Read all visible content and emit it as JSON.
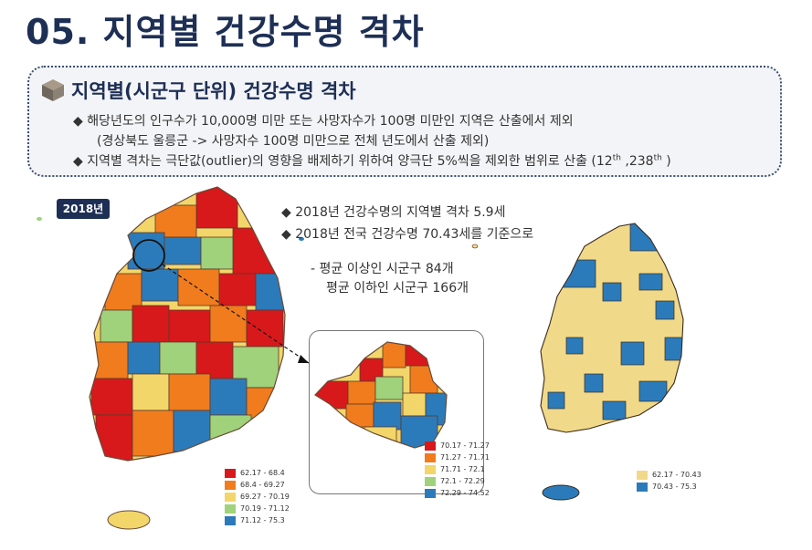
{
  "page": {
    "title": "05. 지역별 건강수명 격차"
  },
  "summary_box": {
    "heading": "지역별(시군구 단위) 건강수명 격차",
    "bullet1": "◆ 해당년도의 인구수가 10,000명 미만 또는 사망자수가 100명 미만인 지역은 산출에서 제외",
    "bullet1_sub": "(경상북도 울릉군 -> 사망자수 100명 미만으로 전체 년도에서 산출 제외)",
    "bullet3_pre": "◆ 지역별 격차는 극단값(outlier)의 영향을 배제하기 위하여 양극단 5%씩을 제외한 범위로 산출 (12",
    "bullet3_sup1": "th",
    "bullet3_mid": " ,238",
    "bullet3_sup2": "th",
    "bullet3_post": " )"
  },
  "year_badge": "2018년",
  "notes": {
    "line1": "◆ 2018년 건강수명의 지역별 격차 5.9세",
    "line2": "◆ 2018년 전국 건강수명 70.43세를 기준으로",
    "line3": "- 평균 이상인 시군구 84개",
    "line4": "평균 이하인 시군구 166개"
  },
  "colors": {
    "red": "#d7191c",
    "orange": "#f07c1e",
    "yellow": "#f2d66a",
    "light_green": "#9fd27a",
    "blue": "#2b7bba",
    "beige": "#f1d98a",
    "navy": "#1e2f55"
  },
  "legend_main": [
    {
      "label": "62.17 - 68.4",
      "color": "#d7191c"
    },
    {
      "label": "68.4 - 69.27",
      "color": "#f07c1e"
    },
    {
      "label": "69.27 - 70.19",
      "color": "#f2d66a"
    },
    {
      "label": "70.19 - 71.12",
      "color": "#9fd27a"
    },
    {
      "label": "71.12 - 75.3",
      "color": "#2b7bba"
    }
  ],
  "legend_seoul": [
    {
      "label": "70.17 - 71.27",
      "color": "#d7191c"
    },
    {
      "label": "71.27 - 71.71",
      "color": "#f07c1e"
    },
    {
      "label": "71.71 - 72.1",
      "color": "#f2d66a"
    },
    {
      "label": "72.1 - 72.29",
      "color": "#9fd27a"
    },
    {
      "label": "72.29 - 74.52",
      "color": "#2b7bba"
    }
  ],
  "legend_binary": [
    {
      "label": "62.17 - 70.43",
      "color": "#f1d98a"
    },
    {
      "label": "70.43 - 75.3",
      "color": "#2b7bba"
    }
  ]
}
